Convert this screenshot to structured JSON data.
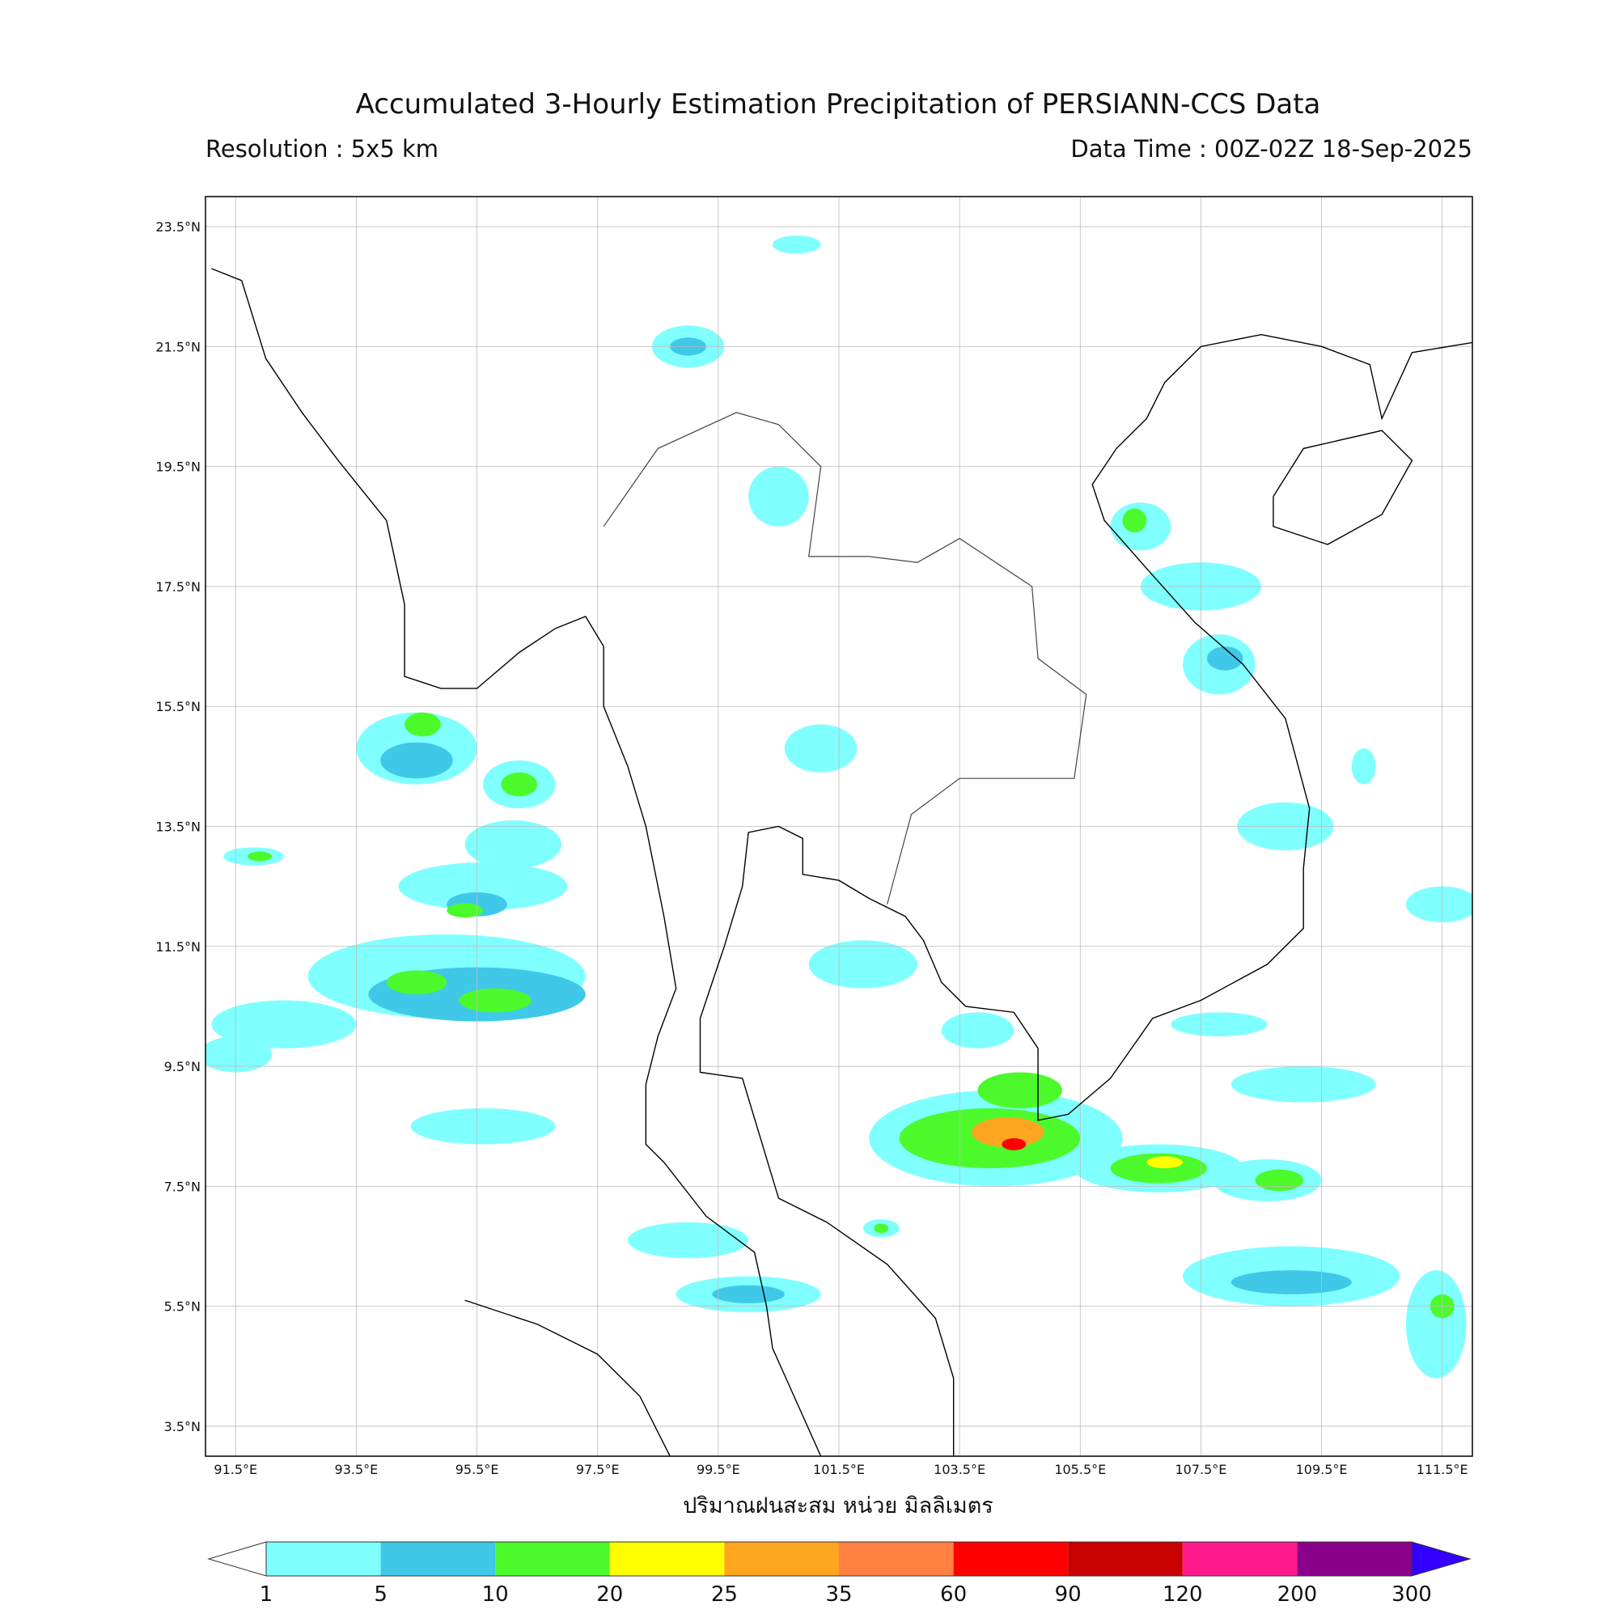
{
  "map": {
    "title": "Accumulated 3-Hourly Estimation Precipitation of PERSIANN-CCS Data",
    "resolution": "Resolution : 5x5 km",
    "data_time": "Data Time : 00Z-02Z 18-Sep-2025",
    "lon_range": [
      91,
      112
    ],
    "lat_range": [
      3,
      24
    ],
    "lon_ticks": [
      {
        "value": 91.5,
        "label": "91.5°E"
      },
      {
        "value": 93.5,
        "label": "93.5°E"
      },
      {
        "value": 95.5,
        "label": "95.5°E"
      },
      {
        "value": 97.5,
        "label": "97.5°E"
      },
      {
        "value": 99.5,
        "label": "99.5°E"
      },
      {
        "value": 101.5,
        "label": "101.5°E"
      },
      {
        "value": 103.5,
        "label": "103.5°E"
      },
      {
        "value": 105.5,
        "label": "105.5°E"
      },
      {
        "value": 107.5,
        "label": "107.5°E"
      },
      {
        "value": 109.5,
        "label": "109.5°E"
      },
      {
        "value": 111.5,
        "label": "111.5°E"
      }
    ],
    "lat_ticks": [
      {
        "value": 23.5,
        "label": "23.5°N"
      },
      {
        "value": 21.5,
        "label": "21.5°N"
      },
      {
        "value": 19.5,
        "label": "19.5°N"
      },
      {
        "value": 17.5,
        "label": "17.5°N"
      },
      {
        "value": 15.5,
        "label": "15.5°N"
      },
      {
        "value": 13.5,
        "label": "13.5°N"
      },
      {
        "value": 11.5,
        "label": "11.5°N"
      },
      {
        "value": 9.5,
        "label": "9.5°N"
      },
      {
        "value": 7.5,
        "label": "7.5°N"
      },
      {
        "value": 5.5,
        "label": "5.5°N"
      },
      {
        "value": 3.5,
        "label": "3.5°N"
      }
    ],
    "colorbar": {
      "label": "ปริมาณฝนสะสม หน่วย มิลลิเมตร",
      "levels": [
        1,
        5,
        10,
        20,
        25,
        35,
        60,
        90,
        120,
        200,
        300
      ],
      "colors": [
        "#80ffff",
        "#40c8e8",
        "#4cfa2c",
        "#ffff00",
        "#ffa520",
        "#ff8040",
        "#ff0000",
        "#c80000",
        "#ff1a8c",
        "#8b008b"
      ],
      "under_color": "#ffffff",
      "over_color": "#3300ff"
    }
  }
}
